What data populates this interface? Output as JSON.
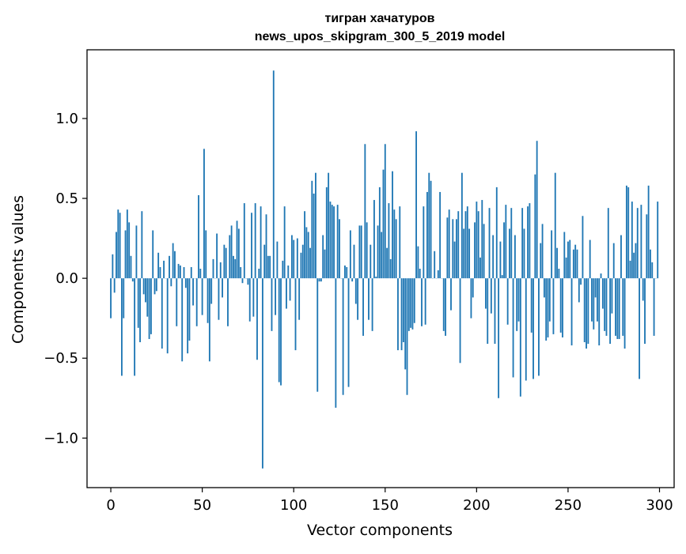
{
  "chart_data": {
    "type": "bar",
    "title_line1": "тигран хачатуров",
    "title_line2": "news_upos_skipgram_300_5_2019 model",
    "xlabel": "Vector components",
    "ylabel": "Components values",
    "xlim": [
      -13,
      308
    ],
    "ylim": [
      -1.31,
      1.43
    ],
    "xticks": [
      0,
      50,
      100,
      150,
      200,
      250,
      300
    ],
    "xtick_labels": [
      "0",
      "50",
      "100",
      "150",
      "200",
      "250",
      "300"
    ],
    "yticks": [
      -1.0,
      -0.5,
      0.0,
      0.5,
      1.0
    ],
    "ytick_labels": [
      "−1.0",
      "−0.5",
      "0.0",
      "0.5",
      "1.0"
    ],
    "grid": false,
    "bar_color": "#1f77b4",
    "values": [
      -0.25,
      0.15,
      -0.09,
      0.29,
      0.43,
      0.41,
      -0.61,
      -0.25,
      0.3,
      0.43,
      0.35,
      0.14,
      -0.02,
      -0.61,
      0.33,
      -0.31,
      -0.4,
      0.42,
      -0.1,
      -0.15,
      -0.24,
      -0.38,
      -0.35,
      0.3,
      -0.1,
      -0.08,
      0.16,
      0.07,
      -0.44,
      0.11,
      0.0,
      -0.47,
      0.14,
      -0.05,
      0.22,
      0.17,
      -0.3,
      0.09,
      0.08,
      -0.52,
      0.07,
      -0.06,
      -0.47,
      -0.39,
      0.07,
      -0.17,
      0.0,
      -0.3,
      0.52,
      0.06,
      -0.23,
      0.81,
      0.3,
      -0.28,
      -0.52,
      -0.16,
      0.12,
      0.0,
      0.28,
      -0.26,
      0.1,
      -0.12,
      0.21,
      0.19,
      -0.3,
      0.27,
      0.33,
      0.14,
      0.12,
      0.36,
      0.31,
      0.07,
      -0.03,
      0.47,
      0.0,
      -0.04,
      -0.27,
      0.41,
      -0.24,
      0.47,
      -0.51,
      0.06,
      0.45,
      -1.19,
      0.21,
      0.4,
      0.14,
      0.14,
      -0.33,
      1.3,
      -0.23,
      0.23,
      -0.65,
      -0.67,
      0.11,
      0.45,
      -0.19,
      0.08,
      -0.14,
      0.27,
      0.24,
      -0.45,
      0.25,
      -0.26,
      0.16,
      0.21,
      0.42,
      0.32,
      0.29,
      0.19,
      0.61,
      0.53,
      0.66,
      -0.71,
      -0.02,
      -0.02,
      0.27,
      0.18,
      0.57,
      0.66,
      0.48,
      0.46,
      0.45,
      -0.81,
      0.46,
      0.37,
      0.0,
      -0.73,
      0.08,
      0.07,
      -0.68,
      0.3,
      -0.02,
      0.21,
      -0.16,
      -0.26,
      0.33,
      0.33,
      -0.36,
      0.84,
      0.35,
      -0.26,
      0.21,
      -0.33,
      0.49,
      0.01,
      0.33,
      0.57,
      0.29,
      0.68,
      0.84,
      0.19,
      0.47,
      0.12,
      0.67,
      0.43,
      0.37,
      -0.45,
      0.45,
      -0.45,
      -0.4,
      -0.57,
      -0.73,
      -0.33,
      -0.31,
      -0.32,
      -0.28,
      0.92,
      0.2,
      0.06,
      -0.3,
      0.45,
      -0.29,
      0.54,
      0.66,
      0.61,
      0.0,
      0.17,
      0.0,
      0.05,
      0.54,
      0.0,
      -0.33,
      -0.36,
      0.38,
      0.43,
      -0.2,
      0.37,
      0.23,
      0.37,
      0.42,
      -0.53,
      0.66,
      0.31,
      0.42,
      0.45,
      0.31,
      -0.25,
      -0.12,
      0.35,
      0.48,
      0.42,
      0.13,
      0.49,
      0.34,
      -0.19,
      -0.41,
      0.44,
      -0.22,
      0.27,
      -0.41,
      0.57,
      -0.75,
      0.23,
      0.02,
      0.35,
      0.46,
      -0.29,
      0.31,
      0.44,
      -0.62,
      0.27,
      -0.33,
      -0.27,
      -0.74,
      0.44,
      0.31,
      -0.64,
      0.45,
      0.47,
      -0.34,
      -0.63,
      0.65,
      0.86,
      -0.61,
      0.22,
      0.34,
      -0.12,
      -0.39,
      -0.37,
      -0.27,
      0.3,
      -0.35,
      0.66,
      0.19,
      0.06,
      -0.34,
      -0.37,
      0.29,
      0.13,
      0.23,
      0.24,
      -0.42,
      0.18,
      0.21,
      0.18,
      -0.15,
      -0.04,
      0.39,
      -0.4,
      -0.44,
      -0.41,
      0.24,
      -0.27,
      -0.32,
      -0.12,
      -0.27,
      -0.42,
      0.03,
      -0.19,
      -0.33,
      -0.36,
      0.44,
      -0.41,
      -0.22,
      0.22,
      -0.36,
      -0.38,
      -0.38,
      0.27,
      -0.36,
      -0.44,
      0.58,
      0.57,
      0.11,
      0.48,
      0.16,
      0.22,
      0.44,
      -0.63,
      0.46,
      -0.14,
      -0.41,
      0.4,
      0.58,
      0.18,
      0.1,
      -0.36,
      0.0,
      0.48
    ]
  }
}
